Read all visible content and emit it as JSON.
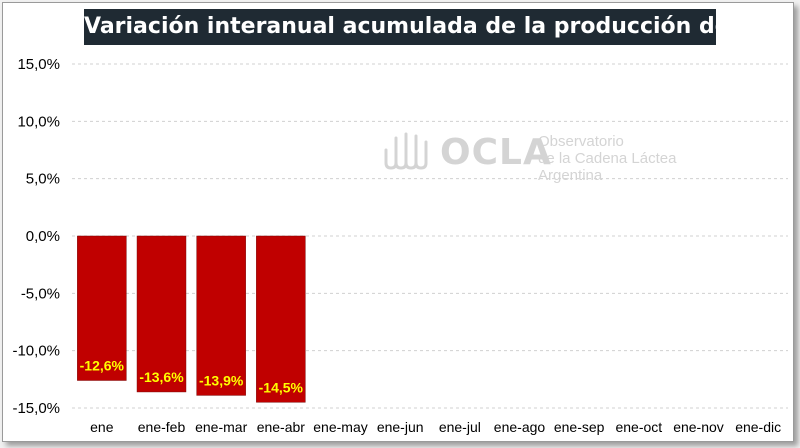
{
  "colors": {
    "bar": "#c00000",
    "data_label": "#ffff00",
    "title_bg": "#1f2a33",
    "grid": "#d0d0d0",
    "watermark": "#d4d4d4"
  },
  "watermark": {
    "logo_icon": "ocla-wave-logo-icon",
    "brand": "OCLA",
    "line1": "Observatorio",
    "line2": "de la Cadena Láctea",
    "line3": "Argentina"
  },
  "chart_data": {
    "type": "bar",
    "title": "Variación interanual acumulada de la producción de leche",
    "xlabel": "",
    "ylabel": "",
    "categories": [
      "ene",
      "ene-feb",
      "ene-mar",
      "ene-abr",
      "ene-may",
      "ene-jun",
      "ene-jul",
      "ene-ago",
      "ene-sep",
      "ene-oct",
      "ene-nov",
      "ene-dic"
    ],
    "values": [
      -12.6,
      -13.6,
      -13.9,
      -14.5,
      null,
      null,
      null,
      null,
      null,
      null,
      null,
      null
    ],
    "data_labels": [
      "-12,6%",
      "-13,6%",
      "-13,9%",
      "-14,5%",
      "",
      "",
      "",
      "",
      "",
      "",
      "",
      ""
    ],
    "ylim": [
      -15,
      15
    ],
    "yticks": [
      15,
      10,
      5,
      0,
      -5,
      -10,
      -15
    ],
    "ytick_labels": [
      "15,0%",
      "10,0%",
      "5,0%",
      "0,0%",
      "-5,0%",
      "-10,0%",
      "-15,0%"
    ],
    "grid": true,
    "legend": "none"
  }
}
